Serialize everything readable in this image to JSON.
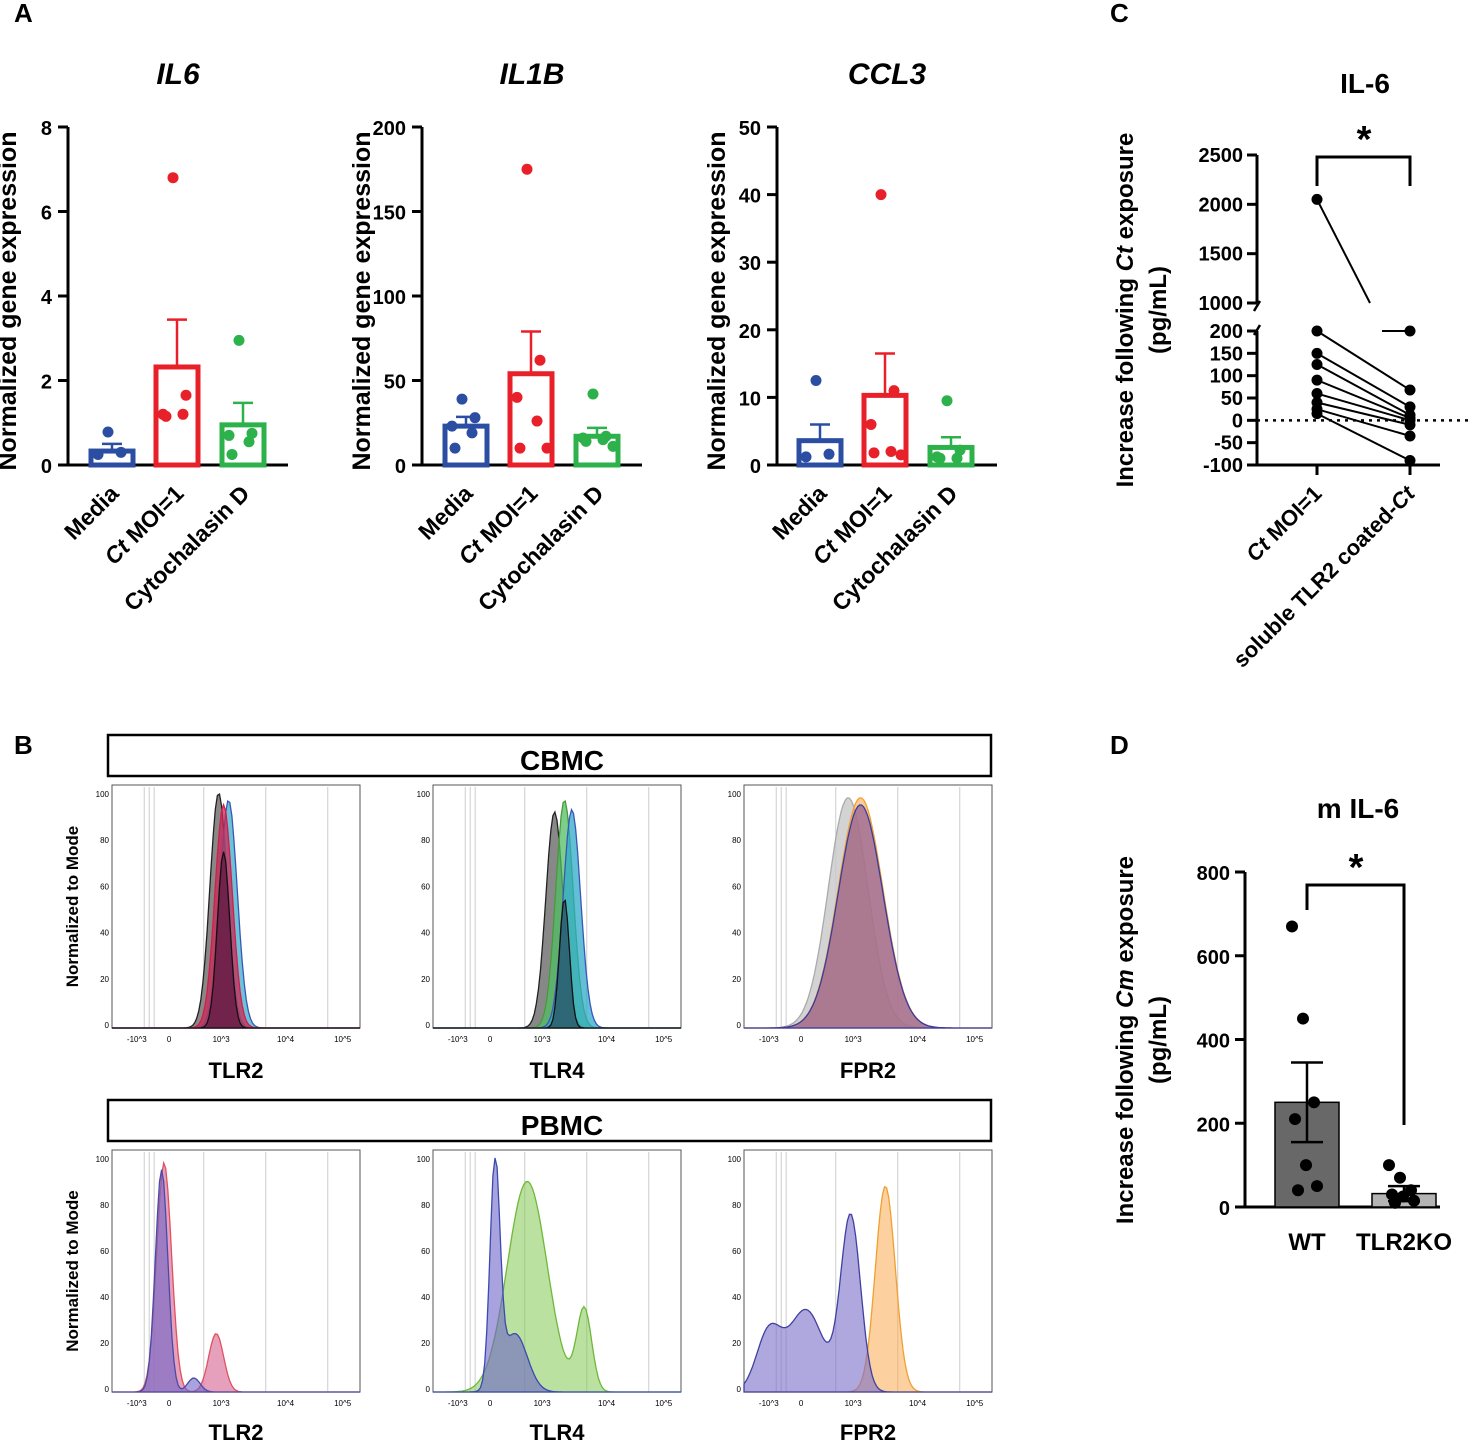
{
  "panels": {
    "A": "A",
    "B": "B",
    "C": "C",
    "D": "D"
  },
  "chart_data": [
    {
      "type": "bar",
      "panel": "A",
      "title": "IL6",
      "ylabel": "Normalized gene expression",
      "ylim": [
        0,
        8
      ],
      "yticks": [
        0,
        2,
        4,
        6,
        8
      ],
      "categories": [
        "Media",
        "Ct MOI=1",
        "Cytochalasin D"
      ],
      "category_prefix": [
        "",
        "Ct",
        ""
      ],
      "category_rest": [
        "Media",
        " MOI=1",
        "Cytochalasin D"
      ],
      "colors": [
        "#2b4ea2",
        "#e8202a",
        "#2db14a"
      ],
      "means": [
        0.33,
        2.32,
        0.95
      ],
      "errors": [
        0.17,
        1.12,
        0.52
      ],
      "points": [
        [
          0.78,
          0.3,
          0.25
        ],
        [
          6.8,
          1.65,
          1.2,
          1.2,
          1.15
        ],
        [
          2.95,
          0.75,
          0.7,
          0.55,
          0.25
        ]
      ]
    },
    {
      "type": "bar",
      "panel": "A",
      "title": "IL1B",
      "ylabel": "Normalized gene expression",
      "ylim": [
        0,
        200
      ],
      "yticks": [
        0,
        50,
        100,
        150,
        200
      ],
      "categories": [
        "Media",
        "Ct MOI=1",
        "Cytochalasin D"
      ],
      "category_prefix": [
        "",
        "Ct",
        ""
      ],
      "category_rest": [
        "Media",
        " MOI=1",
        "Cytochalasin D"
      ],
      "colors": [
        "#2b4ea2",
        "#e8202a",
        "#2db14a"
      ],
      "means": [
        23,
        54,
        17
      ],
      "errors": [
        5.5,
        25,
        5
      ],
      "points": [
        [
          39,
          28,
          23,
          19,
          10
        ],
        [
          175,
          62,
          40,
          26,
          10,
          10
        ],
        [
          42,
          17,
          16,
          15,
          14,
          11
        ]
      ]
    },
    {
      "type": "bar",
      "panel": "A",
      "title": "CCL3",
      "ylabel": "Normalized gene expression",
      "ylim": [
        0,
        50
      ],
      "yticks": [
        0,
        10,
        20,
        30,
        40,
        50
      ],
      "categories": [
        "Media",
        "Ct MOI=1",
        "Cytochalasin D"
      ],
      "category_prefix": [
        "",
        "Ct",
        ""
      ],
      "category_rest": [
        "Media",
        " MOI=1",
        "Cytochalasin D"
      ],
      "colors": [
        "#2b4ea2",
        "#e8202a",
        "#2db14a"
      ],
      "means": [
        3.6,
        10.3,
        2.6
      ],
      "errors": [
        2.4,
        6.2,
        1.5
      ],
      "points": [
        [
          12.5,
          1.6,
          1.2
        ],
        [
          40,
          11,
          6,
          2,
          1.8,
          1.5
        ],
        [
          9.5,
          2.2,
          1.2,
          1.0,
          1.0
        ]
      ]
    },
    {
      "type": "line",
      "panel": "C",
      "title": "IL-6",
      "ylabel_prefix": "Increase following ",
      "ylabel_italic": "Ct",
      "ylabel_suffix": " exposure",
      "ylabel_units": "(pg/mL)",
      "categories": [
        "Ct MOI=1",
        "soluble TLR2 coated-Ct"
      ],
      "cat0_prefix": "Ct",
      "cat0_rest": " MOI=1",
      "cat1_rest": "soluble TLR2 coated-",
      "cat1_italic": "Ct",
      "yticks_upper": [
        "1000",
        "1500",
        "2000",
        "2500"
      ],
      "yticks_lower": [
        "-100",
        "-50",
        "0",
        "50",
        "100",
        "150",
        "200"
      ],
      "pairs": [
        [
          2050,
          200
        ],
        [
          200,
          68
        ],
        [
          150,
          30
        ],
        [
          125,
          12
        ],
        [
          90,
          5
        ],
        [
          60,
          0
        ],
        [
          40,
          -10
        ],
        [
          25,
          -35
        ],
        [
          15,
          -90
        ]
      ],
      "significance": "*"
    },
    {
      "type": "bar",
      "panel": "D",
      "title": "m IL-6",
      "ylabel_prefix": "Increase following ",
      "ylabel_italic": "Cm",
      "ylabel_suffix": " exposure",
      "ylabel_units": "(pg/mL)",
      "ylim": [
        0,
        800
      ],
      "yticks": [
        0,
        200,
        400,
        600,
        800
      ],
      "categories": [
        "WT",
        "TLR2KO"
      ],
      "colors": [
        "#686868",
        "#b4b4b4"
      ],
      "means": [
        250,
        32
      ],
      "errors": [
        95,
        18
      ],
      "points": [
        [
          670,
          450,
          250,
          210,
          100,
          50,
          40
        ],
        [
          100,
          70,
          40,
          30,
          25,
          15,
          10
        ]
      ],
      "significance": "*"
    },
    {
      "type": "area",
      "panel": "B",
      "rows": [
        "CBMC",
        "PBMC"
      ],
      "markers": [
        "TLR2",
        "TLR4",
        "FPR2"
      ],
      "ylabel": "Normalized to Mode",
      "yticks": [
        "0",
        "20",
        "40",
        "60",
        "80",
        "100"
      ],
      "xticks": [
        "-10^3",
        "0",
        "10^3",
        "10^4",
        "10^5"
      ]
    }
  ]
}
